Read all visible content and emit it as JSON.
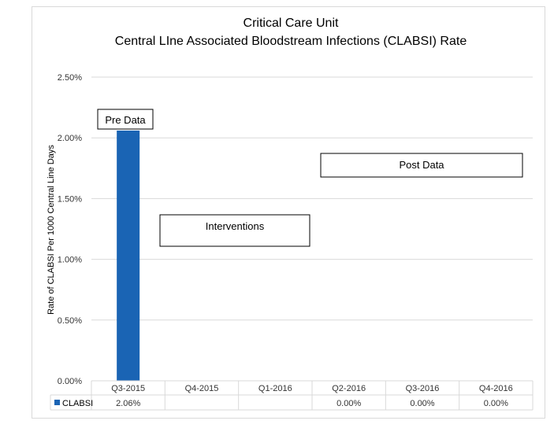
{
  "chart_data": {
    "type": "bar",
    "title": "Critical Care Unit",
    "subtitle": "Central LIne Associated Bloodstream Infections (CLABSI) Rate",
    "ylabel": "Rate  of CLABSI Per 1000 Central Line Days",
    "xlabel": "",
    "ylim": [
      0,
      0.025
    ],
    "y_ticks": [
      0.0,
      0.005,
      0.01,
      0.015,
      0.02,
      0.025
    ],
    "y_tick_labels": [
      "0.00%",
      "0.50%",
      "1.00%",
      "1.50%",
      "2.00%",
      "2.50%"
    ],
    "grid": true,
    "categories": [
      "Q3-2015",
      "Q4-2015",
      "Q1-2016",
      "Q2-2016",
      "Q3-2016",
      "Q4-2016"
    ],
    "series": [
      {
        "name": "CLABSI",
        "color": "#1a64b4",
        "values": [
          0.0206,
          null,
          null,
          0.0,
          0.0,
          0.0
        ],
        "table_labels": [
          "2.06%",
          "",
          "",
          "0.00%",
          "0.00%",
          "0.00%"
        ]
      }
    ],
    "data_table": true,
    "annotations": [
      {
        "text": "Pre Data"
      },
      {
        "text": "Interventions"
      },
      {
        "text": "Post Data"
      }
    ]
  }
}
